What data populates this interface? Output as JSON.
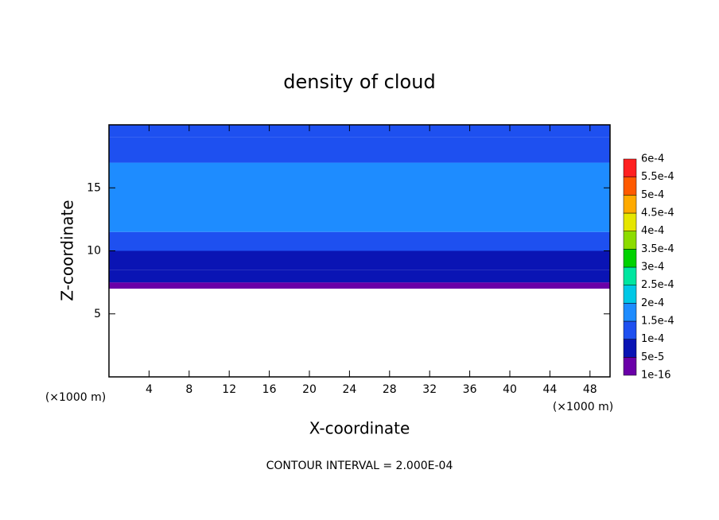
{
  "chart_data": {
    "type": "contour",
    "title": "density of cloud",
    "x_label": "X-coordinate",
    "y_label": "Z-coordinate",
    "x_unit": "(×1000 m)",
    "y_unit": "(×1000 m)",
    "annotation": "CONTOUR INTERVAL = 2.000E-04",
    "xlim": [
      0,
      50
    ],
    "ylim": [
      0,
      20
    ],
    "xticks": [
      4,
      8,
      12,
      16,
      20,
      24,
      28,
      32,
      36,
      40,
      44,
      48
    ],
    "yticks": [
      5,
      10,
      15
    ],
    "field": {
      "z": [
        7,
        7.5,
        8.5,
        10,
        11.5,
        17,
        19,
        20
      ],
      "values": [
        1e-05,
        6e-05,
        9e-05,
        0.00012,
        0.00016,
        0.00012,
        0.0001
      ]
    },
    "colorbar": {
      "ticks": [
        1e-16,
        {
          "value": 5e-05,
          "label": "5e-5"
        },
        {
          "value": 0.0001,
          "label": "1e-4"
        },
        {
          "value": 0.00015,
          "label": "1.5e-4"
        },
        {
          "value": 0.0002,
          "label": "2e-4"
        },
        {
          "value": 0.00025,
          "label": "2.5e-4"
        },
        {
          "value": 0.0003,
          "label": "3e-4"
        },
        {
          "value": 0.00035,
          "label": "3.5e-4"
        },
        {
          "value": 0.0004,
          "label": "4e-4"
        },
        {
          "value": 0.00045,
          "label": "4.5e-4"
        },
        {
          "value": 0.0005,
          "label": "5e-4"
        },
        {
          "value": 0.00055,
          "label": "5.5e-4"
        },
        {
          "value": 0.0006,
          "label": "6e-4"
        }
      ],
      "colors": [
        "#6a00a8",
        "#0a14b4",
        "#1e50f0",
        "#1e8cff",
        "#00c8e6",
        "#00e6a0",
        "#00d200",
        "#8cdc00",
        "#e6e600",
        "#ffaa00",
        "#ff5a00",
        "#ff2020",
        "#ff8c8c"
      ]
    }
  }
}
